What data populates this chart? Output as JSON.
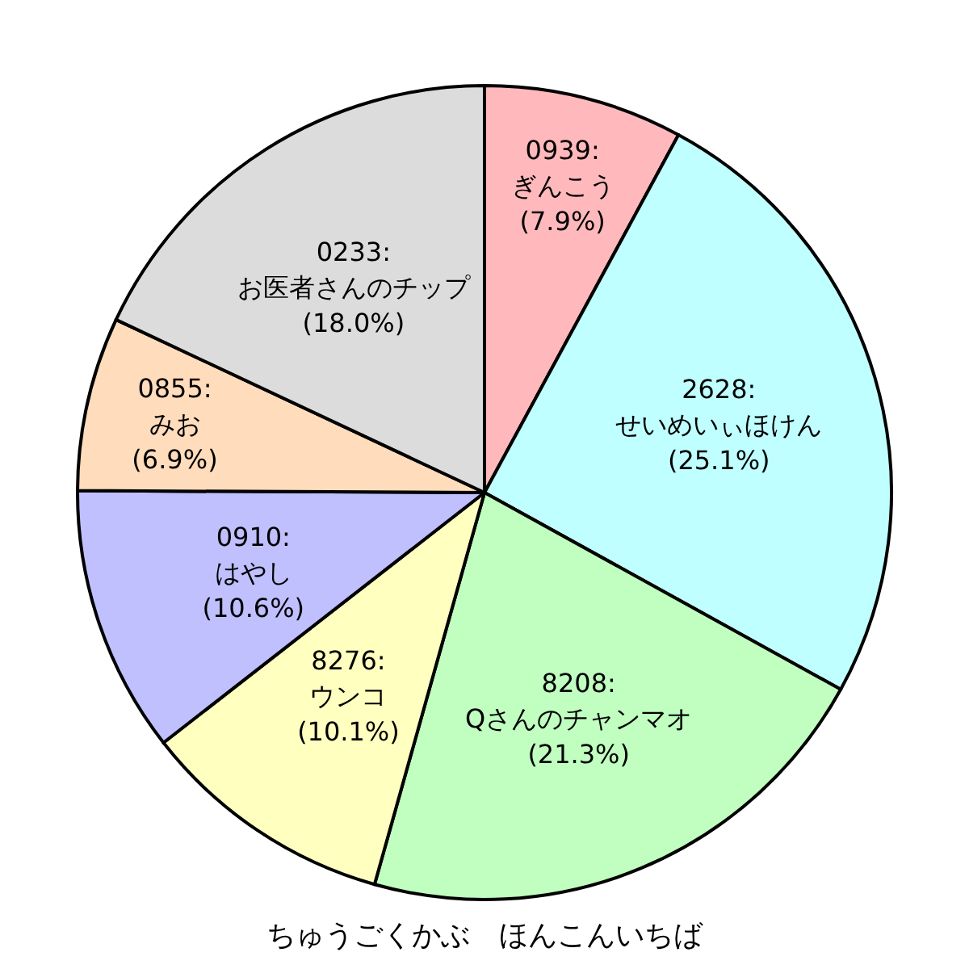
{
  "chart_data": {
    "type": "pie",
    "title": "ちゅうごくかぶ　ほんこんいちば",
    "categories": [
      "0939:ぎんこう",
      "2628:せいめいぃほけん",
      "8208:Qさんのチャンマオ",
      "8276:ウンコ",
      "0910:はやし",
      "0855:みお",
      "0233:お医者さんのチップ"
    ],
    "values": [
      7.9,
      25.1,
      21.3,
      10.1,
      10.6,
      6.9,
      18.0
    ],
    "value_labels": [
      "(7.9%)",
      "(25.1%)",
      "(21.3%)",
      "(10.1%)",
      "(10.6%)",
      "(6.9%)",
      "(18.0%)"
    ],
    "colors": [
      "#ffb9bc",
      "#c0ffff",
      "#c0ffc0",
      "#ffffc0",
      "#c0c0ff",
      "#ffdcbc",
      "#dcdcdc"
    ]
  }
}
